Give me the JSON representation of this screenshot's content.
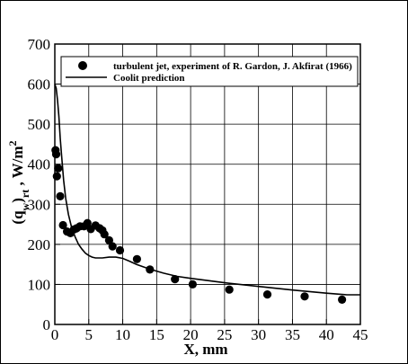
{
  "chart_data": {
    "type": "scatter",
    "xlabel": "X, mm",
    "ylabel_parts": {
      "open": "(q",
      "sub_w": "w",
      "close": ")",
      "sub_rt": "rt",
      "comma": " , ",
      "unit": " W/m",
      "sup": "2"
    },
    "xlim": [
      0,
      45
    ],
    "ylim": [
      0,
      700
    ],
    "xticks": [
      "0",
      "5",
      "10",
      "15",
      "20",
      "25",
      "30",
      "35",
      "40",
      "45"
    ],
    "yticks": [
      "0",
      "100",
      "200",
      "300",
      "400",
      "500",
      "600",
      "700"
    ],
    "grid": true,
    "legend_position": "top-right",
    "series": [
      {
        "name": "turbulent jet, experiment of R. Gardon, J. Akfirat (1966)",
        "type": "scatter",
        "marker": "filled-circle",
        "x": [
          0.1,
          0.2,
          0.3,
          0.5,
          0.8,
          1.2,
          1.8,
          2.3,
          2.8,
          3.2,
          3.7,
          4.3,
          4.8,
          5.3,
          6.0,
          6.6,
          7.0,
          7.3,
          8.0,
          8.5,
          9.6,
          12.1,
          14.0,
          17.7,
          20.3,
          25.7,
          31.3,
          36.8,
          42.3
        ],
        "y": [
          435,
          425,
          370,
          390,
          320,
          248,
          232,
          228,
          237,
          240,
          245,
          245,
          253,
          238,
          247,
          240,
          235,
          225,
          210,
          195,
          185,
          163,
          137,
          113,
          100,
          87,
          75,
          70,
          62
        ]
      },
      {
        "name": "Coolit prediction",
        "type": "line",
        "x": [
          0,
          0.2,
          0.4,
          0.6,
          0.8,
          1.0,
          1.3,
          1.6,
          2.0,
          2.5,
          3.0,
          3.5,
          4.0,
          4.5,
          5.0,
          5.5,
          6.0,
          7.0,
          8.0,
          9.0,
          10.0,
          11.0,
          12.0,
          14.0,
          16.0,
          18.0,
          20.0,
          25.0,
          30.0,
          35.0,
          40.0,
          43.0,
          45.0
        ],
        "y": [
          600,
          590,
          560,
          520,
          465,
          420,
          360,
          315,
          275,
          240,
          218,
          200,
          188,
          178,
          172,
          168,
          166,
          166,
          168,
          168,
          165,
          158,
          150,
          138,
          128,
          120,
          115,
          104,
          95,
          86,
          78,
          74,
          74
        ]
      }
    ]
  }
}
